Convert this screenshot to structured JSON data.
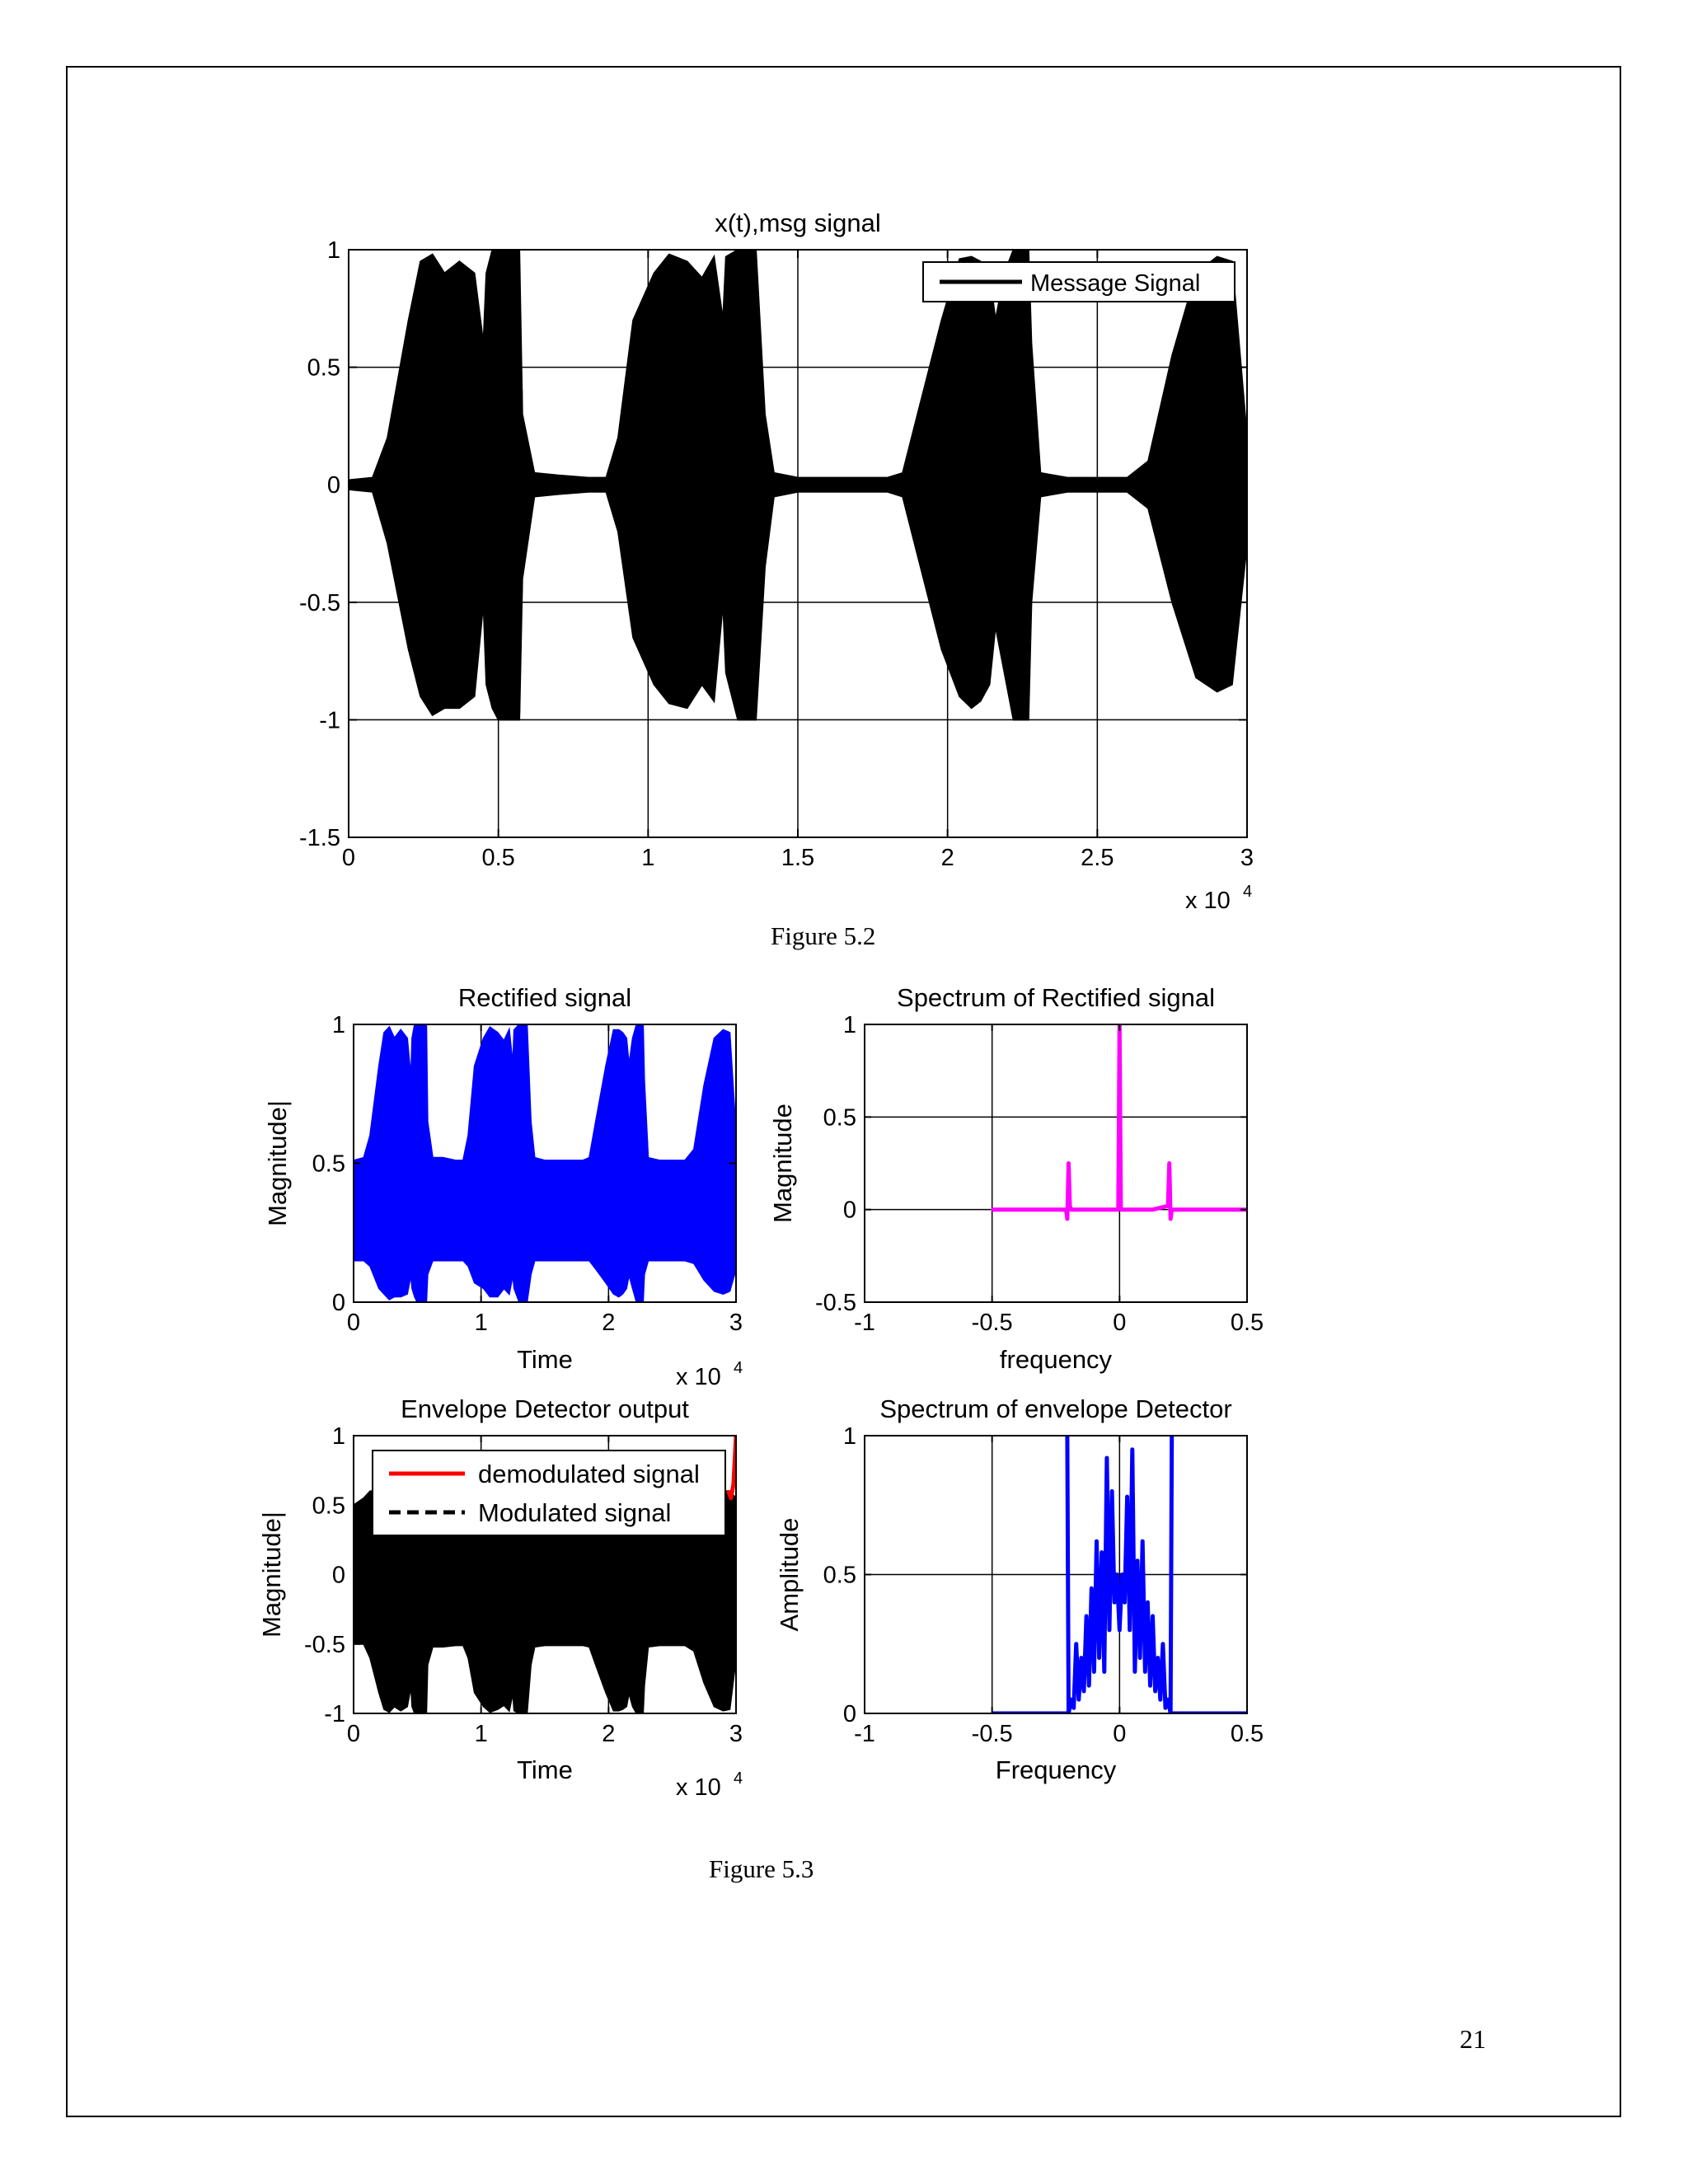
{
  "page": {
    "number": "21"
  },
  "captions": {
    "fig52": "Figure 5.2",
    "fig53": "Figure  5.3"
  },
  "chart_data": [
    {
      "id": "msg",
      "type": "line",
      "title": "x(t),msg signal",
      "xlabel": "",
      "ylabel": "",
      "xlim": [
        0,
        30000
      ],
      "ylim": [
        -1.5,
        1
      ],
      "xticks": [
        0,
        5000,
        10000,
        15000,
        20000,
        25000,
        30000
      ],
      "xticklabels": [
        "0",
        "0.5",
        "1",
        "1.5",
        "2",
        "2.5",
        "3"
      ],
      "yticks": [
        -1.5,
        -1,
        -0.5,
        0,
        0.5,
        1
      ],
      "yticklabels": [
        "-1.5",
        "-1",
        "-0.5",
        "0",
        "0.5",
        "1"
      ],
      "xexponent": "x 10",
      "xexponent_power": "4",
      "grid": true,
      "legend": {
        "position": "top-right",
        "entries": [
          {
            "label": "Message Signal",
            "color": "#000000",
            "style": "solid"
          }
        ]
      },
      "series": [
        {
          "name": "Message Signal",
          "color": "#000000",
          "style": "filled_band",
          "x": [
            0,
            800,
            1300,
            2000,
            2400,
            2800,
            3200,
            3700,
            4200,
            4500,
            4600,
            4800,
            5000,
            5300,
            5700,
            5800,
            6200,
            7000,
            8000,
            8600,
            9000,
            9500,
            10200,
            10700,
            11300,
            11800,
            12200,
            12500,
            12600,
            13000,
            13300,
            13600,
            13900,
            14200,
            15000,
            16000,
            17000,
            18000,
            18500,
            19000,
            19800,
            20400,
            20800,
            21100,
            21400,
            21600,
            21900,
            22200,
            22500,
            22700,
            22800,
            23100,
            24000,
            25000,
            26000,
            26700,
            27500,
            28300,
            29000,
            29500,
            30000
          ],
          "upper": [
            0.02,
            0.03,
            0.2,
            0.7,
            0.95,
            0.98,
            0.9,
            0.95,
            0.9,
            0.6,
            0.9,
            1,
            1,
            1,
            1,
            0.3,
            0.05,
            0.04,
            0.03,
            0.03,
            0.2,
            0.7,
            0.9,
            0.98,
            0.95,
            0.88,
            0.97,
            0.7,
            0.97,
            1,
            1,
            1,
            0.3,
            0.05,
            0.03,
            0.03,
            0.03,
            0.03,
            0.05,
            0.3,
            0.7,
            0.96,
            0.97,
            0.95,
            0.9,
            0.7,
            0.9,
            1,
            1,
            1,
            0.6,
            0.05,
            0.03,
            0.03,
            0.03,
            0.1,
            0.55,
            0.9,
            0.97,
            0.95,
            0.2
          ],
          "lower": [
            -0.02,
            -0.03,
            -0.25,
            -0.7,
            -0.9,
            -0.98,
            -0.95,
            -0.95,
            -0.9,
            -0.5,
            -0.85,
            -0.95,
            -1,
            -1,
            -1,
            -0.4,
            -0.05,
            -0.04,
            -0.03,
            -0.03,
            -0.2,
            -0.65,
            -0.85,
            -0.93,
            -0.95,
            -0.85,
            -0.92,
            -0.5,
            -0.8,
            -1,
            -1,
            -1,
            -0.35,
            -0.05,
            -0.03,
            -0.03,
            -0.03,
            -0.03,
            -0.05,
            -0.3,
            -0.7,
            -0.9,
            -0.95,
            -0.92,
            -0.85,
            -0.6,
            -0.8,
            -1,
            -1,
            -1,
            -0.5,
            -0.05,
            -0.03,
            -0.03,
            -0.03,
            -0.1,
            -0.5,
            -0.82,
            -0.88,
            -0.85,
            -0.25
          ]
        }
      ]
    },
    {
      "id": "rect",
      "type": "line",
      "title": "Rectified signal",
      "xlabel": "Time",
      "ylabel": "Magnitude|",
      "xlim": [
        0,
        30000
      ],
      "ylim": [
        0,
        1
      ],
      "xticks": [
        0,
        10000,
        20000,
        30000
      ],
      "xticklabels": [
        "0",
        "1",
        "2",
        "3"
      ],
      "yticks": [
        0,
        0.5,
        1
      ],
      "yticklabels": [
        "0",
        "0.5",
        "1"
      ],
      "xexponent": "x 10",
      "xexponent_power": "4",
      "grid": true,
      "series": [
        {
          "name": "",
          "color": "#0000ff",
          "style": "filled_band",
          "x": [
            0,
            800,
            1300,
            2000,
            2400,
            2800,
            3200,
            3700,
            4200,
            4500,
            4600,
            4800,
            5000,
            5300,
            5700,
            5800,
            6200,
            7000,
            8000,
            8600,
            9000,
            9500,
            10200,
            10700,
            11300,
            11800,
            12200,
            12500,
            12600,
            13000,
            13300,
            13600,
            13900,
            14200,
            15000,
            16000,
            17000,
            18000,
            18500,
            19000,
            19800,
            20400,
            20800,
            21100,
            21400,
            21600,
            21900,
            22200,
            22500,
            22700,
            22800,
            23100,
            24000,
            25000,
            26000,
            26700,
            27500,
            28300,
            29000,
            29500,
            30000
          ],
          "upper": [
            0.51,
            0.52,
            0.6,
            0.85,
            0.97,
            0.99,
            0.95,
            0.98,
            0.95,
            0.8,
            0.95,
            1,
            1,
            1,
            1,
            0.65,
            0.52,
            0.52,
            0.51,
            0.51,
            0.6,
            0.85,
            0.95,
            0.99,
            0.97,
            0.94,
            0.98,
            0.85,
            0.98,
            1,
            1,
            1,
            0.65,
            0.52,
            0.51,
            0.51,
            0.51,
            0.51,
            0.52,
            0.65,
            0.85,
            0.98,
            0.98,
            0.97,
            0.95,
            0.85,
            0.95,
            1,
            1,
            1,
            0.8,
            0.52,
            0.51,
            0.51,
            0.51,
            0.55,
            0.78,
            0.95,
            0.98,
            0.97,
            0.6
          ],
          "lower": [
            0.15,
            0.15,
            0.13,
            0.05,
            0.03,
            0.01,
            0.02,
            0.02,
            0.03,
            0.1,
            0.05,
            0.02,
            0,
            0,
            0,
            0.1,
            0.15,
            0.15,
            0.15,
            0.15,
            0.13,
            0.07,
            0.05,
            0.02,
            0.02,
            0.05,
            0.03,
            0.1,
            0.05,
            0,
            0,
            0,
            0.1,
            0.15,
            0.15,
            0.15,
            0.15,
            0.15,
            0.15,
            0.12,
            0.07,
            0.03,
            0.02,
            0.03,
            0.05,
            0.1,
            0.05,
            0,
            0,
            0,
            0.1,
            0.15,
            0.15,
            0.15,
            0.15,
            0.14,
            0.08,
            0.04,
            0.03,
            0.04,
            0.12
          ]
        }
      ]
    },
    {
      "id": "rectspec",
      "type": "line",
      "title": "Spectrum of Rectified signal",
      "xlabel": "frequency",
      "ylabel": "Magnitude",
      "xlim": [
        -1,
        0.5
      ],
      "ylim": [
        -0.5,
        1
      ],
      "xticks": [
        -1,
        -0.5,
        0,
        0.5
      ],
      "xticklabels": [
        "-1",
        "-0.5",
        "0",
        "0.5"
      ],
      "yticks": [
        -0.5,
        0,
        0.5,
        1
      ],
      "yticklabels": [
        "-0.5",
        "0",
        "0.5",
        "1"
      ],
      "grid": true,
      "series": [
        {
          "name": "",
          "color": "#ff00ff",
          "style": "line",
          "x": [
            -0.5,
            -0.21,
            -0.205,
            -0.2,
            -0.195,
            -0.19,
            -0.15,
            -0.005,
            0,
            0.005,
            0.13,
            0.19,
            0.195,
            0.2,
            0.205,
            0.5
          ],
          "y": [
            0,
            0,
            -0.05,
            0.25,
            0.02,
            0,
            0,
            0,
            1,
            0,
            0,
            0.02,
            0.25,
            -0.05,
            0,
            0
          ]
        }
      ]
    },
    {
      "id": "env",
      "type": "line",
      "title": "Envelope Detector output",
      "xlabel": "Time",
      "ylabel": "Magnitude|",
      "xlim": [
        0,
        30000
      ],
      "ylim": [
        -1,
        1
      ],
      "xticks": [
        0,
        10000,
        20000,
        30000
      ],
      "xticklabels": [
        "0",
        "1",
        "2",
        "3"
      ],
      "yticks": [
        -1,
        -0.5,
        0,
        0.5,
        1
      ],
      "yticklabels": [
        "-1",
        "-0.5",
        "0",
        "0.5",
        "1"
      ],
      "xexponent": "x 10",
      "xexponent_power": "4",
      "grid": true,
      "legend": {
        "position": "top",
        "entries": [
          {
            "label": "demodulated signal",
            "color": "#ff0000",
            "style": "solid"
          },
          {
            "label": "Modulated signal",
            "color": "#000000",
            "style": "dashed"
          }
        ]
      },
      "series": [
        {
          "name": "Modulated signal",
          "color": "#000000",
          "style": "filled_band",
          "x": [
            0,
            800,
            1300,
            2000,
            2400,
            2800,
            3200,
            3700,
            4200,
            4500,
            4600,
            4800,
            5000,
            5300,
            5700,
            5800,
            6200,
            7000,
            8000,
            8600,
            9000,
            9500,
            10200,
            10700,
            11300,
            11800,
            12200,
            12500,
            12600,
            13000,
            13300,
            13600,
            13900,
            14200,
            15000,
            16000,
            17000,
            18000,
            18500,
            19000,
            19800,
            20400,
            20800,
            21100,
            21400,
            21600,
            21900,
            22200,
            22500,
            22700,
            22800,
            23100,
            24000,
            25000,
            26000,
            26700,
            27500,
            28300,
            29000,
            29500,
            30000
          ],
          "upper": [
            0.5,
            0.55,
            0.6,
            0.6,
            0.6,
            0.6,
            0.6,
            0.6,
            0.6,
            0.6,
            0.6,
            0.6,
            0.6,
            0.6,
            0.6,
            0.55,
            0.5,
            0.5,
            0.5,
            0.5,
            0.55,
            0.6,
            0.6,
            0.6,
            0.6,
            0.6,
            0.6,
            0.6,
            0.6,
            0.6,
            0.6,
            0.6,
            0.55,
            0.5,
            0.5,
            0.5,
            0.5,
            0.5,
            0.5,
            0.55,
            0.6,
            0.6,
            0.6,
            0.6,
            0.6,
            0.6,
            0.6,
            0.6,
            0.6,
            0.6,
            0.6,
            0.5,
            0.5,
            0.5,
            0.5,
            0.52,
            0.58,
            0.6,
            0.6,
            0.6,
            0.55
          ],
          "lower": [
            -0.5,
            -0.5,
            -0.6,
            -0.85,
            -0.97,
            -0.99,
            -0.95,
            -0.98,
            -0.95,
            -0.8,
            -0.95,
            -1,
            -1,
            -1,
            -1,
            -0.65,
            -0.52,
            -0.52,
            -0.51,
            -0.51,
            -0.6,
            -0.85,
            -0.95,
            -0.99,
            -0.97,
            -0.94,
            -0.98,
            -0.85,
            -0.98,
            -1,
            -1,
            -1,
            -0.65,
            -0.52,
            -0.51,
            -0.51,
            -0.51,
            -0.51,
            -0.52,
            -0.65,
            -0.85,
            -0.98,
            -0.98,
            -0.97,
            -0.95,
            -0.85,
            -0.95,
            -1,
            -1,
            -1,
            -0.8,
            -0.52,
            -0.51,
            -0.51,
            -0.51,
            -0.55,
            -0.78,
            -0.95,
            -0.98,
            -0.97,
            -0.6
          ]
        },
        {
          "name": "demodulated signal",
          "color": "#ff0000",
          "style": "line",
          "x": [
            29400,
            29600,
            29800,
            30000
          ],
          "y": [
            0.6,
            0.55,
            0.65,
            1
          ]
        }
      ]
    },
    {
      "id": "envspec",
      "type": "line",
      "title": "Spectrum of envelope Detector",
      "xlabel": "Frequency",
      "ylabel": "Amplitude",
      "xlim": [
        -1,
        0.5
      ],
      "ylim": [
        0,
        1
      ],
      "xticks": [
        -1,
        -0.5,
        0,
        0.5
      ],
      "xticklabels": [
        "-1",
        "-0.5",
        "0",
        "0.5"
      ],
      "yticks": [
        0,
        0.5,
        1
      ],
      "yticklabels": [
        "0",
        "0.5",
        "1"
      ],
      "grid": true,
      "series": [
        {
          "name": "",
          "color": "#0000ff",
          "style": "line",
          "x": [
            -0.5,
            -0.2,
            -0.205,
            -0.2,
            -0.19,
            -0.18,
            -0.17,
            -0.16,
            -0.15,
            -0.14,
            -0.13,
            -0.12,
            -0.11,
            -0.1,
            -0.09,
            -0.08,
            -0.07,
            -0.06,
            -0.05,
            -0.04,
            -0.03,
            -0.02,
            -0.01,
            0,
            0.01,
            0.02,
            0.03,
            0.04,
            0.05,
            0.06,
            0.07,
            0.08,
            0.09,
            0.1,
            0.11,
            0.12,
            0.13,
            0.14,
            0.15,
            0.16,
            0.17,
            0.18,
            0.19,
            0.2,
            0.205,
            0.2,
            0.5
          ],
          "y": [
            0,
            0,
            1,
            0,
            0.05,
            0.02,
            0.25,
            0.05,
            0.2,
            0.08,
            0.35,
            0.1,
            0.45,
            0.15,
            0.62,
            0.2,
            0.58,
            0.15,
            0.92,
            0.3,
            0.8,
            0.4,
            0.5,
            0.3,
            0.5,
            0.4,
            0.78,
            0.3,
            0.95,
            0.15,
            0.55,
            0.2,
            0.62,
            0.15,
            0.4,
            0.1,
            0.35,
            0.08,
            0.2,
            0.05,
            0.25,
            0.02,
            0.05,
            0,
            1,
            0,
            0
          ]
        }
      ]
    }
  ]
}
